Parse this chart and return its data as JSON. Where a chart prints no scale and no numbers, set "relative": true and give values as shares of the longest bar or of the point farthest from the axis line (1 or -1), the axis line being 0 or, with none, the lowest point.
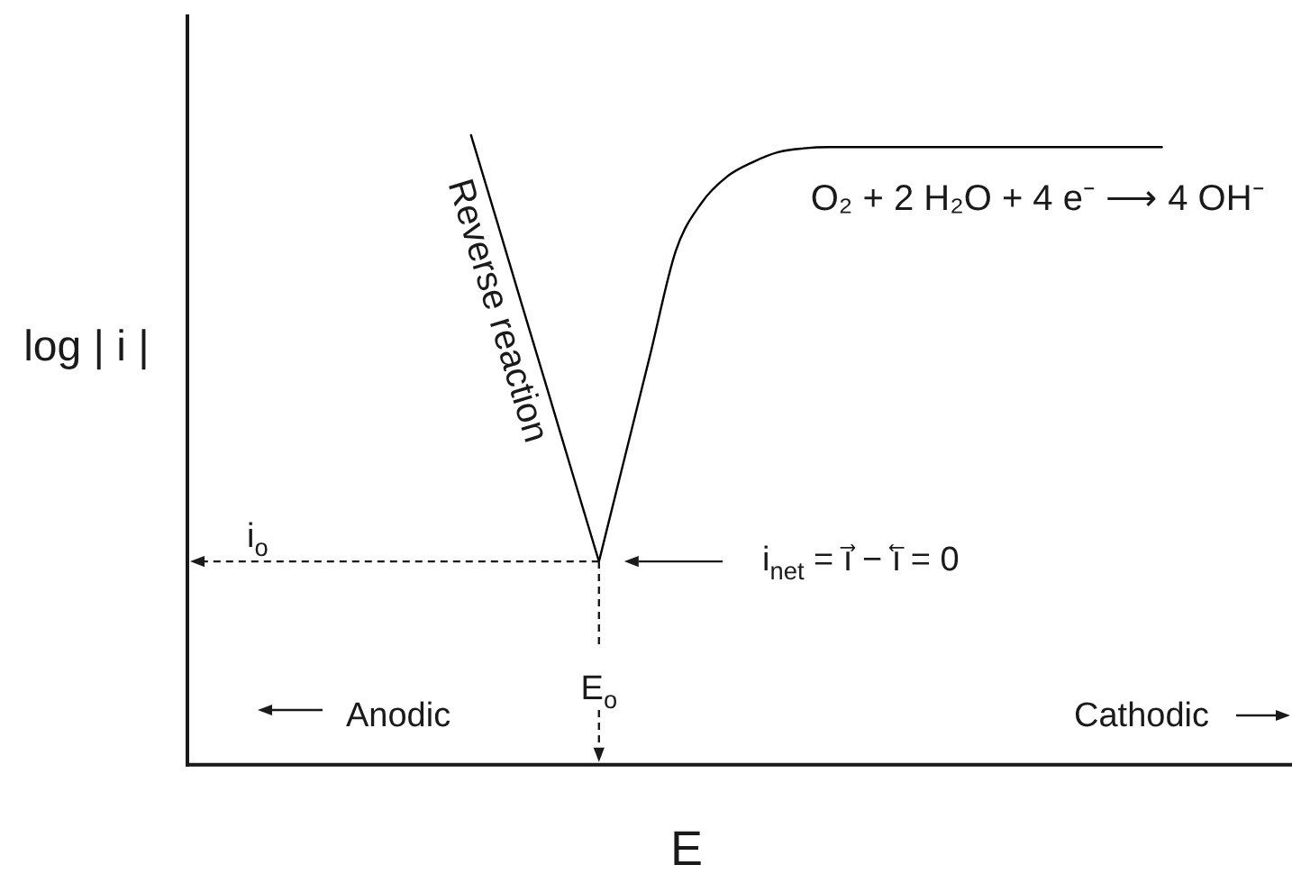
{
  "chart_data": {
    "type": "line",
    "relative": true,
    "xlabel": "E",
    "ylabel": "log | i |",
    "categories": [
      null,
      null,
      null,
      null,
      null,
      null,
      null,
      null,
      null,
      null,
      null,
      null,
      null,
      null,
      null,
      null,
      null,
      null,
      null,
      null,
      null,
      null,
      null,
      null,
      null,
      null,
      null,
      null,
      null,
      null,
      null,
      null,
      null,
      null,
      null,
      null,
      null,
      null,
      null,
      null,
      null,
      null,
      null,
      null
    ],
    "series": [
      {
        "name": "Reverse reaction",
        "color": "#000000",
        "values": [
          null,
          null,
          null,
          null,
          null,
          null,
          null,
          null,
          null,
          null,
          null,
          1,
          0.865,
          0.729,
          0.594,
          0.458,
          0.323,
          null,
          null,
          null,
          null,
          null,
          null,
          null,
          null,
          null,
          null,
          null,
          null,
          null,
          null,
          null,
          null,
          null,
          null,
          null,
          null,
          null,
          null,
          null,
          null,
          null,
          null,
          null
        ]
      },
      {
        "name": "O₂ + 2 H₂O + 4 e⁻ ⟶ 4 OH⁻",
        "color": "#000000",
        "values": [
          null,
          null,
          null,
          null,
          null,
          null,
          null,
          null,
          null,
          null,
          null,
          null,
          null,
          null,
          null,
          null,
          0.323,
          0.487,
          0.651,
          0.816,
          0.892,
          0.934,
          0.957,
          0.973,
          0.979,
          0.981,
          0.981,
          0.981,
          0.981,
          0.981,
          0.981,
          0.981,
          0.981,
          0.981,
          0.981,
          0.981,
          0.981,
          0.981,
          0.981,
          null,
          null,
          null,
          null,
          null
        ]
      }
    ],
    "annotations": [
      "i$_{o}$",
      "E$_{o}$",
      "i$_{net}$ = i⃗ − i⃖ = 0",
      "Anodic",
      "Cathodic"
    ]
  }
}
